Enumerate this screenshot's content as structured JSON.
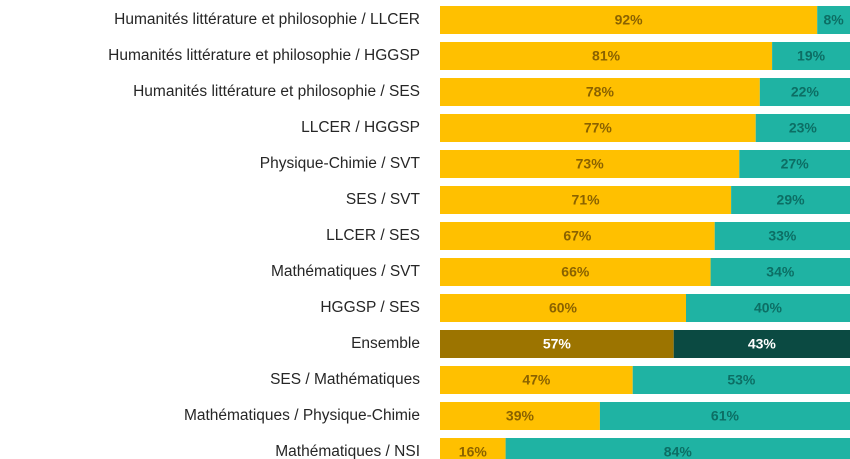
{
  "chart_data": {
    "type": "stacked_barh",
    "categories": [
      "Humanités littérature et philosophie / LLCER",
      "Humanités littérature et philosophie / HGGSP",
      "Humanités littérature et philosophie / SES",
      "LLCER / HGGSP",
      "Physique-Chimie / SVT",
      "SES / SVT",
      "LLCER / SES",
      "Mathématiques / SVT",
      "HGGSP / SES",
      "Ensemble",
      "SES / Mathématiques",
      "Mathématiques / Physique-Chimie",
      "Mathématiques / NSI"
    ],
    "xlim": [
      0,
      100
    ],
    "series": [
      {
        "color": "#FFC000",
        "label_color": "#8a6200",
        "colors": [
          "#FFC000",
          "#FFC000",
          "#FFC000",
          "#FFC000",
          "#FFC000",
          "#FFC000",
          "#FFC000",
          "#FFC000",
          "#FFC000",
          "#9C7400",
          "#FFC000",
          "#FFC000",
          "#FFC000"
        ],
        "values": [
          92,
          81,
          78,
          77,
          73,
          71,
          67,
          66,
          60,
          57,
          47,
          39,
          16
        ],
        "value_labels": [
          "92%",
          "81%",
          "78%",
          "77%",
          "73%",
          "71%",
          "67%",
          "66%",
          "60%",
          "57%",
          "47%",
          "39%",
          "16%"
        ]
      },
      {
        "color": "#1FB3A3",
        "label_color": "#0c6e64",
        "colors": [
          "#1FB3A3",
          "#1FB3A3",
          "#1FB3A3",
          "#1FB3A3",
          "#1FB3A3",
          "#1FB3A3",
          "#1FB3A3",
          "#1FB3A3",
          "#1FB3A3",
          "#0B4A42",
          "#1FB3A3",
          "#1FB3A3",
          "#1FB3A3"
        ],
        "values": [
          8,
          19,
          22,
          23,
          27,
          29,
          33,
          34,
          40,
          43,
          53,
          61,
          84
        ],
        "value_labels": [
          "8%",
          "19%",
          "22%",
          "23%",
          "27%",
          "29%",
          "33%",
          "34%",
          "40%",
          "43%",
          "53%",
          "61%",
          "84%"
        ]
      }
    ]
  }
}
